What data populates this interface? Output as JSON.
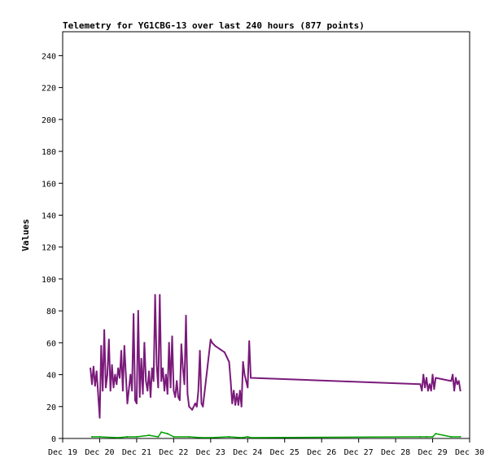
{
  "chart_data": {
    "type": "line",
    "title": "Telemetry for YG1CBG-13 over last 240 hours (877 points)",
    "xlabel": "",
    "ylabel": "Values",
    "ylim": [
      0,
      255
    ],
    "xlim": [
      "Dec 19 00:00",
      "Dec 30 00:00"
    ],
    "y_ticks": [
      0,
      20,
      40,
      60,
      80,
      100,
      120,
      140,
      160,
      180,
      200,
      220,
      240
    ],
    "x_ticks": [
      "Dec 19",
      "Dec 20",
      "Dec 21",
      "Dec 22",
      "Dec 23",
      "Dec 24",
      "Dec 25",
      "Dec 26",
      "Dec 27",
      "Dec 28",
      "Dec 29",
      "Dec 30"
    ],
    "grid": false,
    "legend": "none",
    "series": [
      {
        "color": "#7a1a7a",
        "x": [
          "Dec 19 18:00",
          "Dec 19 19:00",
          "Dec 19 20:00",
          "Dec 19 21:00",
          "Dec 19 22:00",
          "Dec 20 00:00",
          "Dec 20 01:00",
          "Dec 20 02:00",
          "Dec 20 03:00",
          "Dec 20 04:00",
          "Dec 20 05:00",
          "Dec 20 06:00",
          "Dec 20 07:00",
          "Dec 20 08:00",
          "Dec 20 09:00",
          "Dec 20 10:00",
          "Dec 20 11:00",
          "Dec 20 12:00",
          "Dec 20 13:00",
          "Dec 20 14:00",
          "Dec 20 15:00",
          "Dec 20 16:00",
          "Dec 20 18:00",
          "Dec 20 20:00",
          "Dec 20 21:00",
          "Dec 20 22:00",
          "Dec 20 23:00",
          "Dec 21 00:00",
          "Dec 21 01:00",
          "Dec 21 02:00",
          "Dec 21 03:00",
          "Dec 21 04:00",
          "Dec 21 05:00",
          "Dec 21 06:00",
          "Dec 21 07:00",
          "Dec 21 08:00",
          "Dec 21 09:00",
          "Dec 21 10:00",
          "Dec 21 11:00",
          "Dec 21 12:00",
          "Dec 21 13:00",
          "Dec 21 14:00",
          "Dec 21 15:00",
          "Dec 21 16:00",
          "Dec 21 17:00",
          "Dec 21 18:00",
          "Dec 21 19:00",
          "Dec 21 20:00",
          "Dec 21 21:00",
          "Dec 21 22:00",
          "Dec 21 23:00",
          "Dec 22 00:00",
          "Dec 22 01:00",
          "Dec 22 02:00",
          "Dec 22 03:00",
          "Dec 22 04:00",
          "Dec 22 05:00",
          "Dec 22 06:00",
          "Dec 22 07:00",
          "Dec 22 08:00",
          "Dec 22 09:00",
          "Dec 22 10:00",
          "Dec 22 12:00",
          "Dec 22 14:00",
          "Dec 22 15:00",
          "Dec 22 16:00",
          "Dec 22 17:00",
          "Dec 22 18:00",
          "Dec 22 19:00",
          "Dec 23 00:00",
          "Dec 23 01:00",
          "Dec 23 03:00",
          "Dec 23 06:00",
          "Dec 23 09:00",
          "Dec 23 10:00",
          "Dec 23 12:00",
          "Dec 23 13:00",
          "Dec 23 14:00",
          "Dec 23 15:00",
          "Dec 23 16:00",
          "Dec 23 17:00",
          "Dec 23 18:00",
          "Dec 23 19:00",
          "Dec 23 20:00",
          "Dec 23 21:00",
          "Dec 23 22:00",
          "Dec 23 23:00",
          "Dec 24 00:00",
          "Dec 24 01:00",
          "Dec 24 02:00",
          "Dec 28 16:00",
          "Dec 28 17:00",
          "Dec 28 18:00",
          "Dec 28 19:00",
          "Dec 28 20:00",
          "Dec 28 21:00",
          "Dec 28 22:00",
          "Dec 28 23:00",
          "Dec 29 00:00",
          "Dec 29 01:00",
          "Dec 29 02:00",
          "Dec 29 12:00",
          "Dec 29 13:00",
          "Dec 29 14:00",
          "Dec 29 15:00",
          "Dec 29 16:00",
          "Dec 29 17:00",
          "Dec 29 18:00"
        ],
        "values": [
          44,
          34,
          45,
          33,
          42,
          13,
          58,
          30,
          68,
          32,
          40,
          62,
          30,
          46,
          32,
          40,
          34,
          44,
          38,
          55,
          30,
          58,
          22,
          40,
          30,
          78,
          24,
          22,
          80,
          26,
          50,
          28,
          60,
          36,
          30,
          42,
          26,
          44,
          36,
          90,
          46,
          32,
          90,
          36,
          44,
          30,
          40,
          28,
          60,
          32,
          64,
          30,
          26,
          36,
          26,
          24,
          59,
          44,
          34,
          77,
          28,
          20,
          18,
          22,
          20,
          30,
          55,
          22,
          20,
          62,
          60,
          58,
          56,
          54,
          52,
          48,
          36,
          22,
          30,
          21,
          28,
          21,
          30,
          20,
          48,
          40,
          36,
          32,
          61,
          38,
          34,
          30,
          40,
          32,
          38,
          30,
          34,
          30,
          40,
          31,
          38,
          36,
          40,
          30,
          38,
          34,
          36,
          30
        ]
      },
      {
        "color": "#00a000",
        "x": [
          "Dec 19 19:00",
          "Dec 20 00:00",
          "Dec 20 12:00",
          "Dec 20 18:00",
          "Dec 21 00:00",
          "Dec 21 08:00",
          "Dec 21 14:00",
          "Dec 21 16:00",
          "Dec 21 20:00",
          "Dec 22 00:00",
          "Dec 22 10:00",
          "Dec 22 18:00",
          "Dec 23 00:00",
          "Dec 23 12:00",
          "Dec 23 20:00",
          "Dec 24 00:00",
          "Dec 24 02:00",
          "Dec 28 16:00",
          "Dec 28 20:00",
          "Dec 29 00:00",
          "Dec 29 02:00",
          "Dec 29 12:00",
          "Dec 29 18:00"
        ],
        "values": [
          1,
          1,
          0.5,
          1,
          1,
          2,
          1,
          4,
          3,
          1,
          1,
          0.5,
          0.5,
          1,
          0.5,
          1,
          0.5,
          1,
          1,
          1,
          3,
          1,
          1
        ]
      }
    ]
  }
}
